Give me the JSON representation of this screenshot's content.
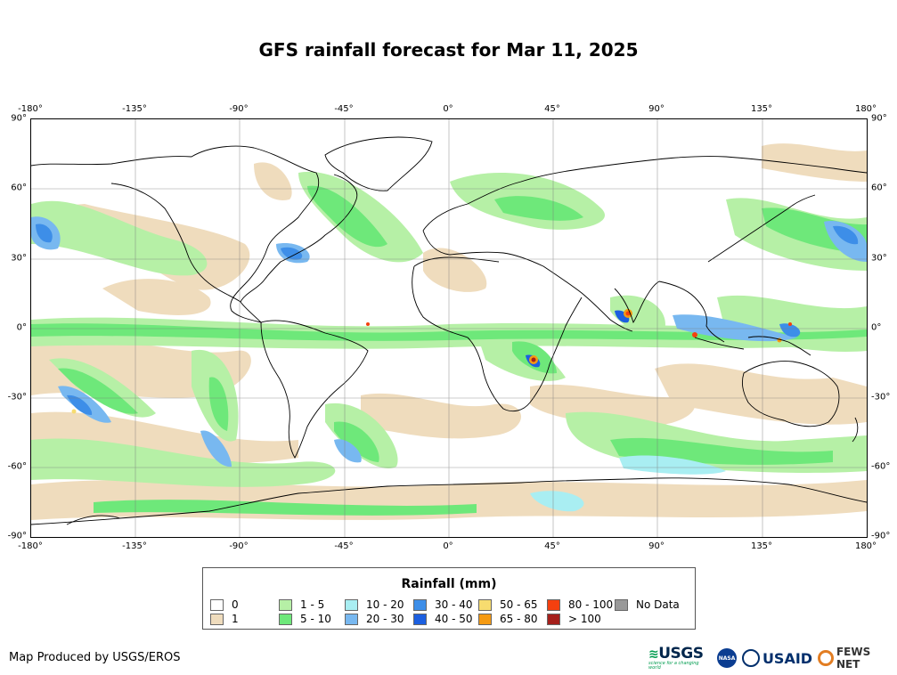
{
  "title": "GFS rainfall forecast for Mar 11, 2025",
  "axes": {
    "lon_ticks": [
      "-180°",
      "-135°",
      "-90°",
      "-45°",
      "0°",
      "45°",
      "90°",
      "135°",
      "180°"
    ],
    "lat_ticks": [
      "90°",
      "60°",
      "30°",
      "0°",
      "-30°",
      "-60°",
      "-90°"
    ]
  },
  "legend": {
    "title": "Rainfall (mm)",
    "items": [
      {
        "label": "0",
        "color": "#ffffff"
      },
      {
        "label": "1",
        "color": "#efdcbd"
      },
      {
        "label": "1 - 5",
        "color": "#b6f0a6"
      },
      {
        "label": "5 - 10",
        "color": "#6ee87a"
      },
      {
        "label": "10 - 20",
        "color": "#a9eef2"
      },
      {
        "label": "20 - 30",
        "color": "#78b8f0"
      },
      {
        "label": "30 - 40",
        "color": "#3d8ee8"
      },
      {
        "label": "40 - 50",
        "color": "#1c5fe0"
      },
      {
        "label": "50 - 65",
        "color": "#f7dc6f"
      },
      {
        "label": "65 - 80",
        "color": "#f59a12"
      },
      {
        "label": "80 - 100",
        "color": "#f4400f"
      },
      {
        "label": "> 100",
        "color": "#a51f1b"
      },
      {
        "label": "No Data",
        "color": "#999999"
      }
    ]
  },
  "credit": "Map Produced by USGS/EROS",
  "logos": {
    "usgs": "USGS",
    "usgs_tagline": "science for a changing world",
    "nasa": "NASA",
    "usaid": "USAID",
    "fews": "FEWS NET"
  }
}
